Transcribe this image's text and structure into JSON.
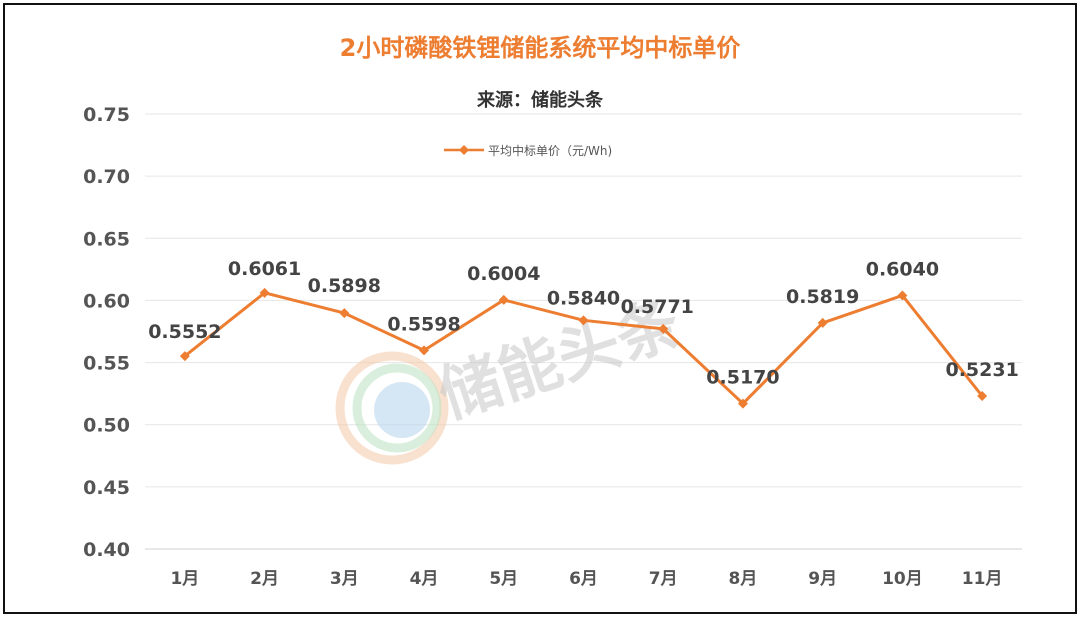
{
  "header": {
    "title": "2小时磷酸铁锂储能系统平均中标单价",
    "subtitle": "来源：储能头条"
  },
  "watermark": {
    "text": "储能头条",
    "icon": "circular-logo-icon"
  },
  "colors": {
    "series": "#ED7D31",
    "title": "#ED7D31",
    "grid": "#e6e6e6"
  },
  "chart_data": {
    "type": "line",
    "title": "2小时磷酸铁锂储能系统平均中标单价",
    "subtitle": "来源：储能头条",
    "categories": [
      "1月",
      "2月",
      "3月",
      "4月",
      "5月",
      "6月",
      "7月",
      "8月",
      "9月",
      "10月",
      "11月"
    ],
    "series": [
      {
        "name": "平均中标单价（元/Wh)",
        "values": [
          0.5552,
          0.6061,
          0.5898,
          0.5598,
          0.6004,
          0.584,
          0.5771,
          0.517,
          0.5819,
          0.604,
          0.5231
        ]
      }
    ],
    "data_labels": [
      "0.5552",
      "0.6061",
      "0.5898",
      "0.5598",
      "0.6004",
      "0.5840",
      "0.5771",
      "0.5170",
      "0.5819",
      "0.6040",
      "0.5231"
    ],
    "ylim": [
      0.4,
      0.75
    ],
    "yticks": [
      "0.40",
      "0.45",
      "0.50",
      "0.55",
      "0.60",
      "0.65",
      "0.70",
      "0.75"
    ],
    "grid": true,
    "legend_position": "top-center",
    "marker": "diamond"
  }
}
